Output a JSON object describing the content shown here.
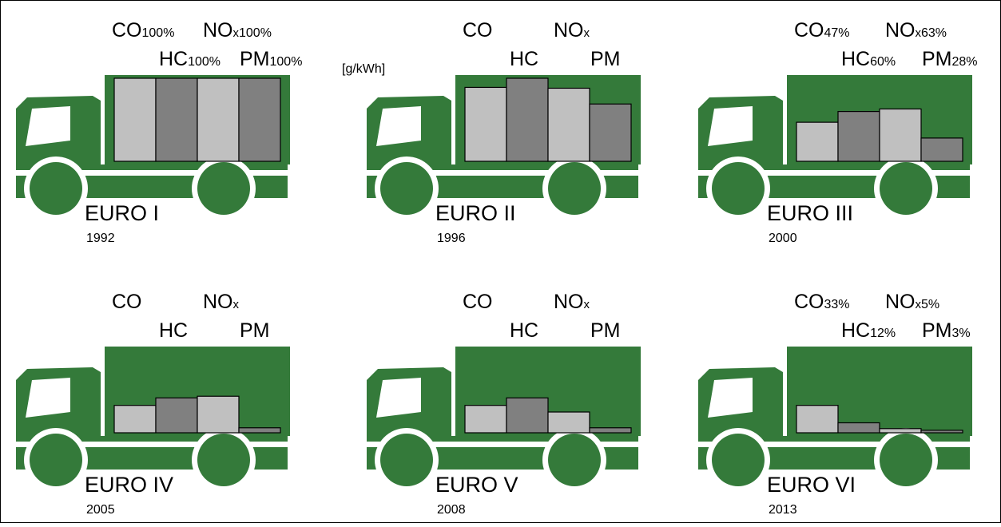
{
  "chart_data": [
    {
      "type": "bar",
      "title": "EURO I",
      "subtitle": "1992",
      "unit": "[g/kWh]",
      "categories": [
        {
          "text": "CO"
        },
        {
          "text": "HC"
        },
        {
          "text": "NO",
          "sub": "x"
        },
        {
          "text": "PM"
        }
      ],
      "values": [
        100,
        100,
        100,
        100
      ],
      "value_labels": [
        "100%",
        "100%",
        "100%",
        "100%"
      ],
      "ylim": [
        0,
        100
      ],
      "colors": [
        "#c0c0c0",
        "#808080",
        "#c0c0c0",
        "#808080"
      ],
      "truck_color": "#347a3a"
    },
    {
      "type": "bar",
      "title": "EURO II",
      "subtitle": "1996",
      "categories": [
        {
          "text": "CO"
        },
        {
          "text": "HC"
        },
        {
          "text": "NO",
          "sub": "x"
        },
        {
          "text": "PM"
        }
      ],
      "values": [
        89,
        100,
        88,
        69
      ],
      "ylim": [
        0,
        100
      ],
      "colors": [
        "#c0c0c0",
        "#808080",
        "#c0c0c0",
        "#808080"
      ],
      "truck_color": "#347a3a"
    },
    {
      "type": "bar",
      "title": "EURO III",
      "subtitle": "2000",
      "categories": [
        {
          "text": "CO"
        },
        {
          "text": "HC"
        },
        {
          "text": "NO",
          "sub": "x"
        },
        {
          "text": "PM"
        }
      ],
      "values": [
        47,
        60,
        63,
        28
      ],
      "value_labels": [
        "47%",
        "60%",
        "63%",
        "28%"
      ],
      "ylim": [
        0,
        100
      ],
      "colors": [
        "#c0c0c0",
        "#808080",
        "#c0c0c0",
        "#808080"
      ],
      "truck_color": "#347a3a"
    },
    {
      "type": "bar",
      "title": "EURO IV",
      "subtitle": "2005",
      "categories": [
        {
          "text": "CO"
        },
        {
          "text": "HC"
        },
        {
          "text": "NO",
          "sub": "x"
        },
        {
          "text": "PM"
        }
      ],
      "values": [
        33,
        42,
        44,
        6
      ],
      "ylim": [
        0,
        100
      ],
      "colors": [
        "#c0c0c0",
        "#808080",
        "#c0c0c0",
        "#808080"
      ],
      "truck_color": "#347a3a"
    },
    {
      "type": "bar",
      "title": "EURO V",
      "subtitle": "2008",
      "categories": [
        {
          "text": "CO"
        },
        {
          "text": "HC"
        },
        {
          "text": "NO",
          "sub": "x"
        },
        {
          "text": "PM"
        }
      ],
      "values": [
        33,
        42,
        25,
        6
      ],
      "ylim": [
        0,
        100
      ],
      "colors": [
        "#c0c0c0",
        "#808080",
        "#c0c0c0",
        "#808080"
      ],
      "truck_color": "#347a3a"
    },
    {
      "type": "bar",
      "title": "EURO VI",
      "subtitle": "2013",
      "categories": [
        {
          "text": "CO"
        },
        {
          "text": "HC"
        },
        {
          "text": "NO",
          "sub": "x"
        },
        {
          "text": "PM"
        }
      ],
      "values": [
        33,
        12,
        5,
        3
      ],
      "value_labels": [
        "33%",
        "12%",
        "5%",
        "3%"
      ],
      "ylim": [
        0,
        100
      ],
      "colors": [
        "#c0c0c0",
        "#808080",
        "#c0c0c0",
        "#808080"
      ],
      "truck_color": "#347a3a"
    }
  ]
}
